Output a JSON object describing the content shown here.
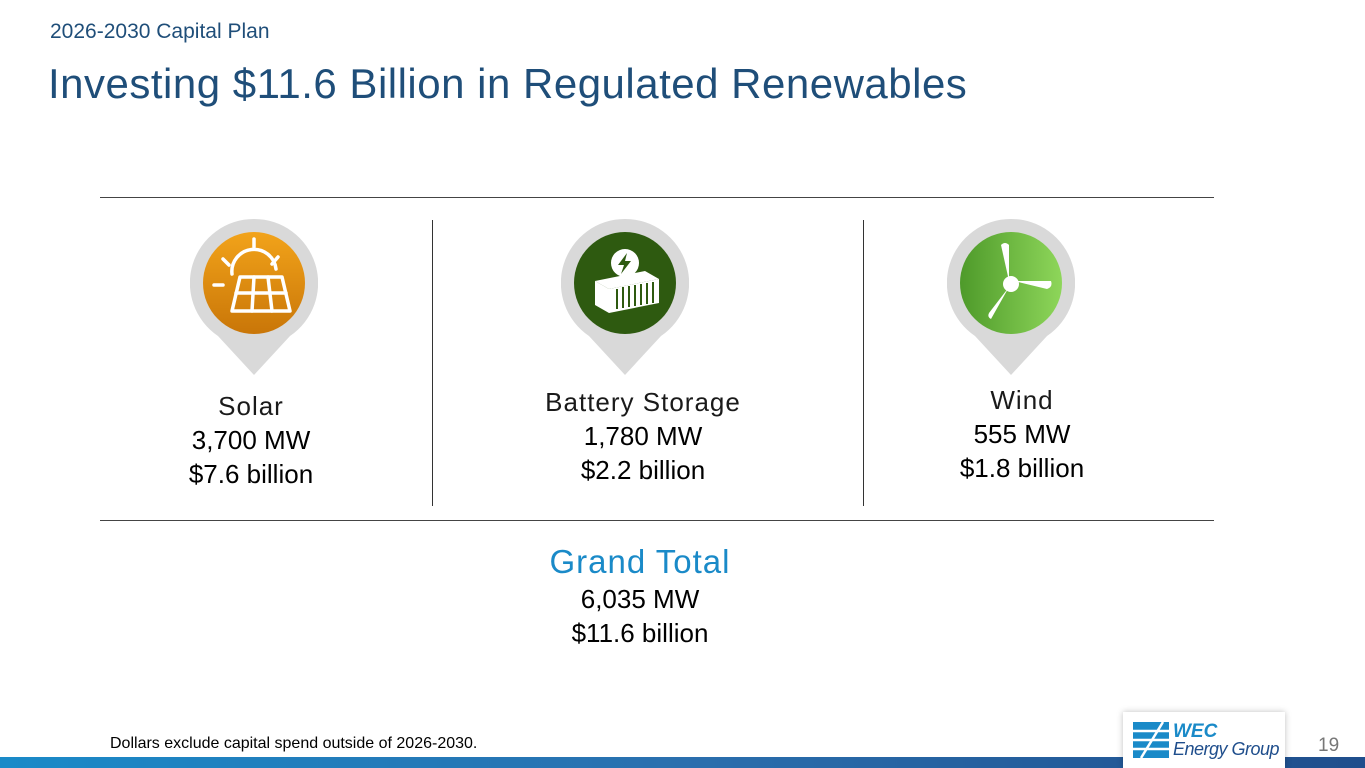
{
  "header": {
    "subtitle": "2026-2030 Capital Plan",
    "title": "Investing $11.6 Billion in Regulated Renewables"
  },
  "categories": [
    {
      "name": "Solar",
      "capacity": "3,700 MW",
      "cost": "$7.6 billion",
      "icon": "solar-panel-icon",
      "color": "#e8920e"
    },
    {
      "name": "Battery Storage",
      "capacity": "1,780 MW",
      "cost": "$2.2 billion",
      "icon": "battery-container-icon",
      "color": "#2e5a10"
    },
    {
      "name": "Wind",
      "capacity": "555 MW",
      "cost": "$1.8 billion",
      "icon": "wind-turbine-icon",
      "color": "#6cbf3c"
    }
  ],
  "grand_total": {
    "label": "Grand Total",
    "capacity": "6,035 MW",
    "cost": "$11.6 billion"
  },
  "footer": {
    "footnote": "Dollars exclude capital spend outside of 2026-2030.",
    "logo_line1": "WEC",
    "logo_line2": "Energy Group",
    "page_number": "19"
  }
}
